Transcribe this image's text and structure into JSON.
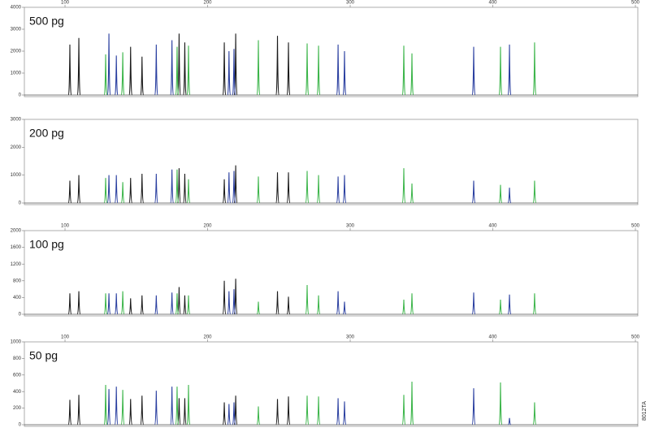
{
  "code": "8012TA",
  "chart_data": [
    {
      "type": "peak",
      "annotation": "500 pg",
      "xlim": [
        71.5,
        501.7
      ],
      "xticks": [
        100,
        200,
        300,
        400,
        500
      ],
      "ylim": [
        0,
        4000
      ],
      "yticks": [
        0,
        1000,
        2000,
        3000,
        4000
      ],
      "series": [
        {
          "name": "black",
          "color": "#1a1a1a",
          "x": [
            103.4,
            109.7,
            146,
            154,
            180,
            184,
            211.7,
            219.7,
            249,
            256.7
          ],
          "values": [
            2300,
            2600,
            2200,
            1750,
            2800,
            2400,
            2400,
            2800,
            2700,
            2400
          ]
        },
        {
          "name": "blue",
          "color": "#2a3fa0",
          "x": [
            130.8,
            136,
            164,
            175,
            215,
            218.5,
            291.5,
            296,
            386.6,
            411.7
          ],
          "values": [
            2800,
            1800,
            2300,
            2500,
            2000,
            2100,
            2300,
            2000,
            2200,
            2300
          ]
        },
        {
          "name": "green",
          "color": "#3cb54a",
          "x": [
            128.5,
            140.5,
            178.6,
            186.6,
            235.6,
            269.8,
            277.8,
            337.6,
            343.3,
            405.4,
            429.3
          ],
          "values": [
            1850,
            1950,
            2200,
            2250,
            2500,
            2350,
            2250,
            2250,
            1900,
            2200,
            2400
          ]
        }
      ]
    },
    {
      "type": "peak",
      "annotation": "200 pg",
      "xlim": [
        71.5,
        501.7
      ],
      "ylim": [
        0,
        3000
      ],
      "yticks": [
        0,
        1000,
        2000,
        3000
      ],
      "series": [
        {
          "name": "black",
          "color": "#1a1a1a",
          "x": [
            103.4,
            109.7,
            146,
            154,
            180,
            184,
            211.7,
            219.7,
            249,
            256.7
          ],
          "values": [
            800,
            1000,
            900,
            1050,
            1250,
            1050,
            850,
            1350,
            1100,
            1100
          ]
        },
        {
          "name": "blue",
          "color": "#2a3fa0",
          "x": [
            130.8,
            136,
            164,
            175,
            215,
            218.5,
            291.5,
            296,
            386.6,
            411.7
          ],
          "values": [
            1000,
            1000,
            1050,
            1200,
            1100,
            1150,
            950,
            1000,
            800,
            550
          ]
        },
        {
          "name": "green",
          "color": "#3cb54a",
          "x": [
            128.5,
            140.5,
            178.6,
            186.6,
            235.6,
            269.8,
            277.8,
            337.6,
            343.3,
            405.4,
            429.3
          ],
          "values": [
            900,
            750,
            1200,
            850,
            950,
            1150,
            1000,
            1250,
            700,
            650,
            800
          ]
        }
      ]
    },
    {
      "type": "peak",
      "annotation": "100 pg",
      "xlim": [
        71.5,
        501.7
      ],
      "xticks": [
        100,
        200,
        300,
        400,
        500
      ],
      "ylim": [
        0,
        2000
      ],
      "yticks": [
        0,
        400,
        800,
        1200,
        1600,
        2000
      ],
      "series": [
        {
          "name": "black",
          "color": "#1a1a1a",
          "x": [
            103.4,
            109.7,
            146,
            154,
            180,
            184,
            211.7,
            219.7,
            249,
            256.7
          ],
          "values": [
            500,
            550,
            380,
            450,
            650,
            450,
            800,
            850,
            550,
            420
          ]
        },
        {
          "name": "blue",
          "color": "#2a3fa0",
          "x": [
            130.8,
            136,
            164,
            175,
            215,
            218.5,
            291.5,
            296,
            386.6,
            411.7
          ],
          "values": [
            500,
            500,
            450,
            520,
            550,
            600,
            550,
            300,
            520,
            470
          ]
        },
        {
          "name": "green",
          "color": "#3cb54a",
          "x": [
            128.5,
            140.5,
            178.6,
            186.6,
            235.6,
            269.8,
            277.8,
            337.6,
            343.3,
            405.4,
            429.3
          ],
          "values": [
            500,
            550,
            500,
            450,
            300,
            700,
            450,
            350,
            500,
            350,
            500
          ]
        }
      ]
    },
    {
      "type": "peak",
      "annotation": "50 pg",
      "xlim": [
        71.5,
        501.7
      ],
      "xticks": [
        100,
        200,
        300,
        400,
        500
      ],
      "ylim": [
        0,
        1000
      ],
      "yticks": [
        0,
        200,
        400,
        600,
        800,
        1000
      ],
      "series": [
        {
          "name": "black",
          "color": "#1a1a1a",
          "x": [
            103.4,
            109.7,
            146,
            154,
            180,
            184,
            211.7,
            219.7,
            249,
            256.7
          ],
          "values": [
            300,
            360,
            310,
            350,
            320,
            320,
            270,
            350,
            310,
            340
          ]
        },
        {
          "name": "blue",
          "color": "#2a3fa0",
          "x": [
            130.8,
            136,
            164,
            175,
            215,
            218.5,
            291.5,
            296,
            386.6,
            411.7
          ],
          "values": [
            430,
            460,
            410,
            460,
            250,
            270,
            320,
            280,
            440,
            80
          ]
        },
        {
          "name": "green",
          "color": "#3cb54a",
          "x": [
            128.5,
            140.5,
            178.6,
            186.6,
            235.6,
            269.8,
            277.8,
            337.6,
            343.3,
            405.4,
            429.3
          ],
          "values": [
            480,
            420,
            460,
            480,
            220,
            350,
            340,
            360,
            520,
            510,
            270
          ]
        }
      ]
    }
  ]
}
